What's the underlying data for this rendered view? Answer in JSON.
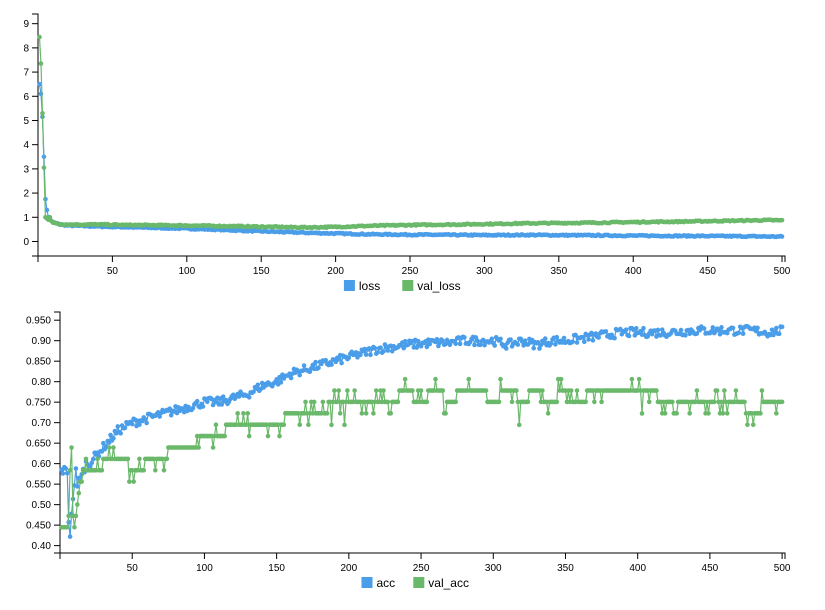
{
  "chart_data": [
    {
      "type": "line",
      "title": "",
      "xlabel": "",
      "ylabel": "",
      "xlim": [
        0,
        502
      ],
      "ylim": [
        -0.6,
        9.4
      ],
      "xticks": [
        50,
        100,
        150,
        200,
        250,
        300,
        350,
        400,
        450,
        500
      ],
      "xtick_labels": [
        "50",
        "100",
        "150",
        "200",
        "250",
        "300",
        "350",
        "400",
        "450",
        "500"
      ],
      "yticks": [
        0,
        1,
        2,
        3,
        4,
        5,
        6,
        7,
        8,
        9
      ],
      "ytick_labels": [
        "0",
        "1",
        "2",
        "3",
        "4",
        "5",
        "6",
        "7",
        "8",
        "9"
      ],
      "legend_position": "bottom-center",
      "series": [
        {
          "name": "loss",
          "color": "#4a9de8",
          "points": [
            [
              1,
              6.5
            ],
            [
              2,
              6.1
            ],
            [
              3,
              5.15
            ],
            [
              4,
              3.5
            ],
            [
              5,
              1.75
            ],
            [
              6,
              1.3
            ],
            [
              7,
              1.0
            ],
            [
              8,
              0.9
            ],
            [
              9,
              0.85
            ],
            [
              10,
              0.8
            ],
            [
              15,
              0.7
            ],
            [
              20,
              0.66
            ],
            [
              40,
              0.62
            ],
            [
              60,
              0.59
            ],
            [
              80,
              0.56
            ],
            [
              100,
              0.53
            ],
            [
              120,
              0.49
            ],
            [
              140,
              0.44
            ],
            [
              160,
              0.4
            ],
            [
              180,
              0.36
            ],
            [
              200,
              0.33
            ],
            [
              220,
              0.3
            ],
            [
              250,
              0.28
            ],
            [
              280,
              0.27
            ],
            [
              300,
              0.26
            ],
            [
              330,
              0.27
            ],
            [
              350,
              0.26
            ],
            [
              380,
              0.25
            ],
            [
              400,
              0.24
            ],
            [
              430,
              0.23
            ],
            [
              460,
              0.22
            ],
            [
              480,
              0.21
            ],
            [
              500,
              0.2
            ]
          ]
        },
        {
          "name": "val_loss",
          "color": "#6ab86a",
          "points": [
            [
              1,
              8.45
            ],
            [
              2,
              7.35
            ],
            [
              3,
              5.3
            ],
            [
              4,
              3.05
            ],
            [
              5,
              1.0
            ],
            [
              6,
              0.95
            ],
            [
              7,
              0.9
            ],
            [
              8,
              1.0
            ],
            [
              9,
              0.85
            ],
            [
              10,
              0.78
            ],
            [
              15,
              0.72
            ],
            [
              20,
              0.7
            ],
            [
              40,
              0.7
            ],
            [
              60,
              0.68
            ],
            [
              80,
              0.67
            ],
            [
              100,
              0.66
            ],
            [
              120,
              0.64
            ],
            [
              140,
              0.62
            ],
            [
              160,
              0.6
            ],
            [
              180,
              0.58
            ],
            [
              200,
              0.6
            ],
            [
              220,
              0.64
            ],
            [
              250,
              0.68
            ],
            [
              280,
              0.7
            ],
            [
              300,
              0.72
            ],
            [
              330,
              0.75
            ],
            [
              350,
              0.76
            ],
            [
              380,
              0.78
            ],
            [
              400,
              0.8
            ],
            [
              430,
              0.82
            ],
            [
              450,
              0.84
            ],
            [
              470,
              0.86
            ],
            [
              490,
              0.88
            ],
            [
              500,
              0.87
            ]
          ]
        }
      ]
    },
    {
      "type": "line",
      "title": "",
      "xlabel": "",
      "ylabel": "",
      "xlim": [
        0,
        502
      ],
      "ylim": [
        0.382,
        0.97
      ],
      "xticks": [
        50,
        100,
        150,
        200,
        250,
        300,
        350,
        400,
        450,
        500
      ],
      "xtick_labels": [
        "50",
        "100",
        "150",
        "200",
        "250",
        "300",
        "350",
        "400",
        "450",
        "500"
      ],
      "yticks": [
        0.4,
        0.45,
        0.5,
        0.55,
        0.6,
        0.65,
        0.7,
        0.75,
        0.8,
        0.85,
        0.9,
        0.95
      ],
      "ytick_labels": [
        "0.40",
        "0.450",
        "0.50",
        "0.550",
        "0.60",
        "0.650",
        "0.70",
        "0.750",
        "0.80",
        "0.850",
        "0.90",
        "0.950"
      ],
      "legend_position": "bottom-center",
      "series": [
        {
          "name": "acc",
          "color": "#4a9de8",
          "points": [
            [
              1,
              0.583
            ],
            [
              3,
              0.583
            ],
            [
              5,
              0.583
            ],
            [
              6,
              0.46
            ],
            [
              7,
              0.43
            ],
            [
              8,
              0.47
            ],
            [
              9,
              0.52
            ],
            [
              10,
              0.55
            ],
            [
              11,
              0.58
            ],
            [
              12,
              0.54
            ],
            [
              13,
              0.56
            ],
            [
              15,
              0.57
            ],
            [
              18,
              0.6
            ],
            [
              20,
              0.6
            ],
            [
              25,
              0.62
            ],
            [
              30,
              0.64
            ],
            [
              35,
              0.66
            ],
            [
              40,
              0.68
            ],
            [
              45,
              0.69
            ],
            [
              50,
              0.7
            ],
            [
              60,
              0.71
            ],
            [
              70,
              0.72
            ],
            [
              80,
              0.73
            ],
            [
              90,
              0.74
            ],
            [
              100,
              0.75
            ],
            [
              110,
              0.75
            ],
            [
              120,
              0.76
            ],
            [
              130,
              0.77
            ],
            [
              140,
              0.79
            ],
            [
              150,
              0.8
            ],
            [
              160,
              0.82
            ],
            [
              170,
              0.83
            ],
            [
              180,
              0.84
            ],
            [
              190,
              0.85
            ],
            [
              200,
              0.86
            ],
            [
              210,
              0.87
            ],
            [
              220,
              0.88
            ],
            [
              230,
              0.885
            ],
            [
              240,
              0.89
            ],
            [
              250,
              0.893
            ],
            [
              260,
              0.895
            ],
            [
              270,
              0.895
            ],
            [
              280,
              0.9
            ],
            [
              290,
              0.9
            ],
            [
              300,
              0.9
            ],
            [
              310,
              0.89
            ],
            [
              320,
              0.9
            ],
            [
              330,
              0.89
            ],
            [
              340,
              0.9
            ],
            [
              350,
              0.9
            ],
            [
              360,
              0.905
            ],
            [
              370,
              0.91
            ],
            [
              380,
              0.915
            ],
            [
              390,
              0.92
            ],
            [
              400,
              0.92
            ],
            [
              420,
              0.92
            ],
            [
              440,
              0.925
            ],
            [
              460,
              0.925
            ],
            [
              480,
              0.925
            ],
            [
              490,
              0.92
            ],
            [
              500,
              0.925
            ]
          ]
        },
        {
          "name": "val_acc",
          "color": "#6ab86a",
          "points": [
            [
              1,
              0.444
            ],
            [
              3,
              0.444
            ],
            [
              5,
              0.444
            ],
            [
              6,
              0.472
            ],
            [
              7,
              0.58
            ],
            [
              8,
              0.64
            ],
            [
              9,
              0.47
            ],
            [
              10,
              0.444
            ],
            [
              12,
              0.5
            ],
            [
              14,
              0.55
            ],
            [
              16,
              0.583
            ],
            [
              18,
              0.6
            ],
            [
              20,
              0.583
            ],
            [
              25,
              0.583
            ],
            [
              30,
              0.6
            ],
            [
              35,
              0.611
            ],
            [
              40,
              0.611
            ],
            [
              45,
              0.611
            ],
            [
              50,
              0.583
            ],
            [
              55,
              0.583
            ],
            [
              60,
              0.611
            ],
            [
              70,
              0.611
            ],
            [
              80,
              0.64
            ],
            [
              90,
              0.64
            ],
            [
              100,
              0.667
            ],
            [
              110,
              0.667
            ],
            [
              120,
              0.694
            ],
            [
              130,
              0.694
            ],
            [
              140,
              0.694
            ],
            [
              150,
              0.694
            ],
            [
              160,
              0.72
            ],
            [
              170,
              0.72
            ],
            [
              180,
              0.72
            ],
            [
              190,
              0.75
            ],
            [
              200,
              0.75
            ],
            [
              210,
              0.75
            ],
            [
              220,
              0.75
            ],
            [
              230,
              0.75
            ],
            [
              240,
              0.78
            ],
            [
              250,
              0.75
            ],
            [
              260,
              0.78
            ],
            [
              270,
              0.75
            ],
            [
              280,
              0.78
            ],
            [
              290,
              0.78
            ],
            [
              300,
              0.75
            ],
            [
              310,
              0.78
            ],
            [
              320,
              0.75
            ],
            [
              330,
              0.78
            ],
            [
              340,
              0.75
            ],
            [
              350,
              0.78
            ],
            [
              360,
              0.75
            ],
            [
              370,
              0.78
            ],
            [
              380,
              0.78
            ],
            [
              390,
              0.78
            ],
            [
              400,
              0.78
            ],
            [
              410,
              0.78
            ],
            [
              420,
              0.75
            ],
            [
              430,
              0.75
            ],
            [
              440,
              0.75
            ],
            [
              450,
              0.75
            ],
            [
              460,
              0.75
            ],
            [
              470,
              0.75
            ],
            [
              480,
              0.722
            ],
            [
              490,
              0.75
            ],
            [
              500,
              0.75
            ]
          ]
        }
      ]
    }
  ]
}
